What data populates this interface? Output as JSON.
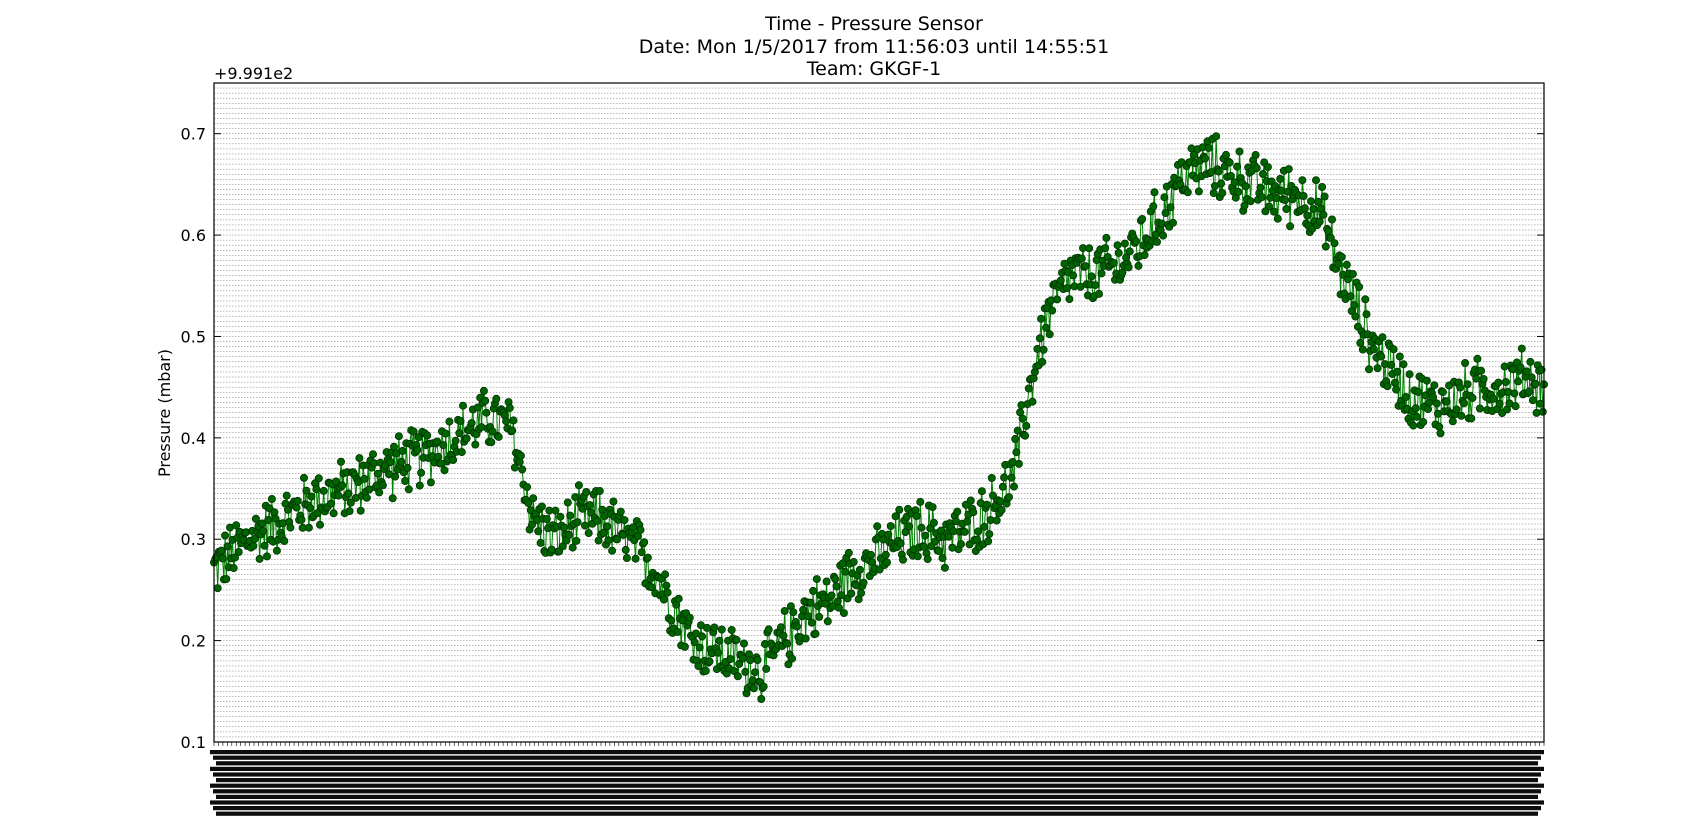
{
  "chart_data": {
    "type": "line",
    "title_lines": [
      "Time - Pressure Sensor",
      "Date: Mon 1/5/2017 from 11:56:03 until 14:55:51",
      "Team: GKGF-1"
    ],
    "xlabel": "",
    "ylabel": "Pressure (mbar)",
    "y_offset_label": "+9.991e2",
    "ylim": [
      0.1,
      0.75
    ],
    "y_ticks": [
      0.1,
      0.2,
      0.3,
      0.4,
      0.5,
      0.6,
      0.7
    ],
    "y_tick_labels": [
      "0.1",
      "0.2",
      "0.3",
      "0.4",
      "0.5",
      "0.6",
      "0.7"
    ],
    "grid": true,
    "x_tick_labels_illegible": true,
    "x_count": 1080,
    "series": [
      {
        "color": "#008000",
        "marker_color": "#006400",
        "marker": "circle",
        "trend": [
          [
            0,
            0.27
          ],
          [
            30,
            0.3
          ],
          [
            60,
            0.32
          ],
          [
            90,
            0.34
          ],
          [
            120,
            0.35
          ],
          [
            150,
            0.37
          ],
          [
            180,
            0.38
          ],
          [
            210,
            0.4
          ],
          [
            240,
            0.42
          ],
          [
            260,
            0.41
          ],
          [
            280,
            0.32
          ],
          [
            300,
            0.3
          ],
          [
            320,
            0.32
          ],
          [
            340,
            0.32
          ],
          [
            360,
            0.3
          ],
          [
            380,
            0.28
          ],
          [
            400,
            0.24
          ],
          [
            420,
            0.2
          ],
          [
            440,
            0.19
          ],
          [
            460,
            0.18
          ],
          [
            480,
            0.17
          ],
          [
            500,
            0.2
          ],
          [
            520,
            0.23
          ],
          [
            540,
            0.24
          ],
          [
            560,
            0.27
          ],
          [
            580,
            0.28
          ],
          [
            600,
            0.3
          ],
          [
            620,
            0.31
          ],
          [
            640,
            0.3
          ],
          [
            660,
            0.31
          ],
          [
            680,
            0.33
          ],
          [
            700,
            0.36
          ],
          [
            715,
            0.45
          ],
          [
            730,
            0.52
          ],
          [
            750,
            0.56
          ],
          [
            770,
            0.56
          ],
          [
            790,
            0.57
          ],
          [
            810,
            0.59
          ],
          [
            830,
            0.62
          ],
          [
            850,
            0.66
          ],
          [
            870,
            0.67
          ],
          [
            890,
            0.66
          ],
          [
            910,
            0.65
          ],
          [
            930,
            0.64
          ],
          [
            950,
            0.64
          ],
          [
            970,
            0.62
          ],
          [
            985,
            0.57
          ],
          [
            1000,
            0.53
          ],
          [
            1015,
            0.49
          ],
          [
            1030,
            0.47
          ],
          [
            1050,
            0.44
          ],
          [
            1070,
            0.43
          ],
          [
            1090,
            0.44
          ],
          [
            1110,
            0.45
          ],
          [
            1130,
            0.45
          ],
          [
            1150,
            0.46
          ],
          [
            1165,
            0.45
          ]
        ],
        "noise_amplitude": 0.035
      }
    ]
  }
}
